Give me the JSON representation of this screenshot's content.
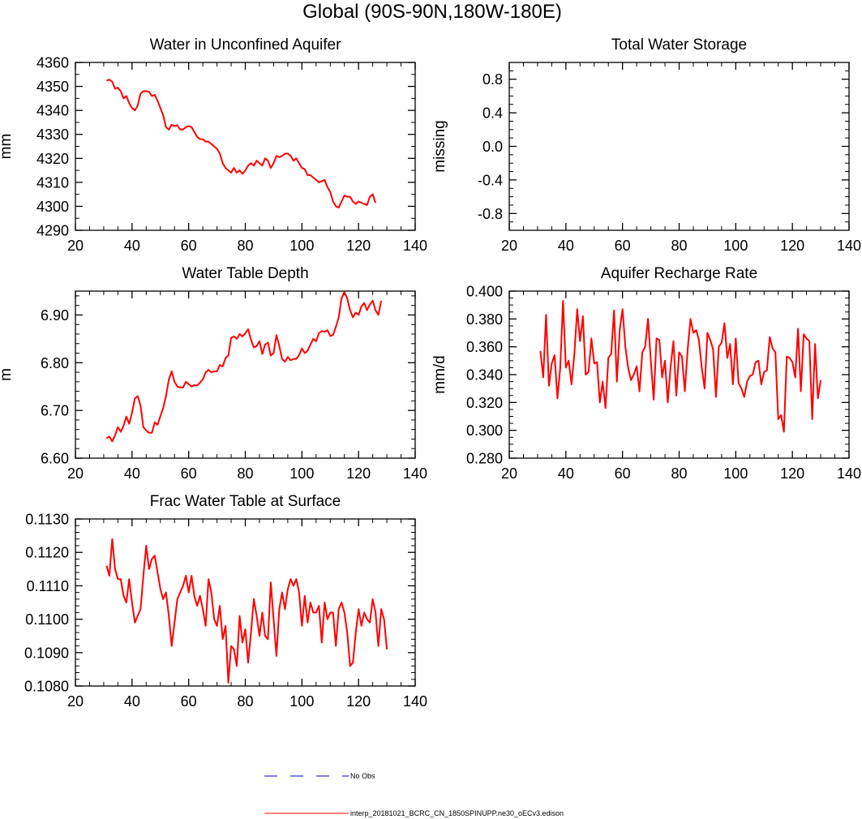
{
  "figure_title": "Global (90S-90N,180W-180E)",
  "colors": {
    "model": "#ff0000",
    "obs": "#0000cc",
    "axis": "#000000"
  },
  "legend": {
    "obs_label": "No Obs",
    "model_label": "interp_20181021_BCRC_CN_1850SPINUPP.ne30_oECv3.edison"
  },
  "chart_data": [
    {
      "type": "line",
      "title": "Water in Unconfined Aquifer",
      "xlabel": "",
      "ylabel": "mm",
      "xlim": [
        20,
        140
      ],
      "ylim": [
        4290,
        4360
      ],
      "xticks": [
        20,
        40,
        60,
        80,
        100,
        120,
        140
      ],
      "xtick_labels": [
        "20",
        "40",
        "60",
        "80",
        "100",
        "120",
        "140"
      ],
      "yticks": [
        4290,
        4300,
        4310,
        4320,
        4330,
        4340,
        4350,
        4360
      ],
      "ytick_labels": [
        "4290",
        "4300",
        "4310",
        "4320",
        "4330",
        "4340",
        "4350",
        "4360"
      ],
      "yminor": 2,
      "series": [
        {
          "name": "model",
          "x_start": 31,
          "values": [
            4352.5,
            4352.8,
            4352,
            4349,
            4349.5,
            4348,
            4345,
            4346,
            4343,
            4341,
            4340,
            4342,
            4347,
            4348,
            4348,
            4347.8,
            4346,
            4346.5,
            4344,
            4341,
            4338,
            4333,
            4332,
            4334,
            4333.5,
            4333.8,
            4332,
            4332,
            4333,
            4333.5,
            4333,
            4331,
            4329,
            4328,
            4328,
            4327,
            4327,
            4326,
            4325,
            4324,
            4322,
            4318,
            4316,
            4315,
            4314,
            4316,
            4314,
            4315,
            4313.5,
            4315,
            4317,
            4318,
            4317,
            4319,
            4318,
            4317,
            4320,
            4319,
            4316,
            4318,
            4321,
            4320.5,
            4321,
            4322,
            4322,
            4321,
            4319,
            4320,
            4318,
            4316,
            4315.5,
            4313,
            4313,
            4312,
            4311,
            4310,
            4310.5,
            4311,
            4308,
            4306,
            4302,
            4300,
            4299.5,
            4302,
            4304.5,
            4304,
            4304,
            4302,
            4301,
            4302,
            4301.5,
            4301,
            4300.5,
            4304,
            4305,
            4301.5
          ]
        }
      ]
    },
    {
      "type": "line",
      "title": "Total Water Storage",
      "xlabel": "",
      "ylabel": "missing",
      "xlim": [
        20,
        140
      ],
      "ylim": [
        -1,
        1
      ],
      "xticks": [
        20,
        40,
        60,
        80,
        100,
        120,
        140
      ],
      "xtick_labels": [
        "20",
        "40",
        "60",
        "80",
        "100",
        "120",
        "140"
      ],
      "yticks": [
        -0.8,
        -0.4,
        0.0,
        0.4,
        0.8
      ],
      "ytick_labels": [
        "-0.8",
        "-0.4",
        "0.0",
        "0.4",
        "0.8"
      ],
      "yminor": 4,
      "series": []
    },
    {
      "type": "line",
      "title": "Water Table Depth",
      "xlabel": "",
      "ylabel": "m",
      "xlim": [
        20,
        140
      ],
      "ylim": [
        6.6,
        6.95
      ],
      "xticks": [
        20,
        40,
        60,
        80,
        100,
        120,
        140
      ],
      "xtick_labels": [
        "20",
        "40",
        "60",
        "80",
        "100",
        "120",
        "140"
      ],
      "yticks": [
        6.6,
        6.7,
        6.8,
        6.9
      ],
      "ytick_labels": [
        "6.60",
        "6.70",
        "6.80",
        "6.90"
      ],
      "yminor": 5,
      "series": [
        {
          "name": "model",
          "x_start": 31,
          "values": [
            6.642,
            6.645,
            6.635,
            6.648,
            6.665,
            6.655,
            6.668,
            6.687,
            6.672,
            6.695,
            6.725,
            6.73,
            6.71,
            6.665,
            6.658,
            6.653,
            6.653,
            6.675,
            6.67,
            6.688,
            6.705,
            6.73,
            6.765,
            6.782,
            6.76,
            6.75,
            6.748,
            6.748,
            6.76,
            6.755,
            6.75,
            6.753,
            6.752,
            6.758,
            6.765,
            6.78,
            6.785,
            6.78,
            6.782,
            6.782,
            6.795,
            6.792,
            6.81,
            6.815,
            6.852,
            6.855,
            6.85,
            6.86,
            6.855,
            6.862,
            6.87,
            6.848,
            6.832,
            6.835,
            6.845,
            6.818,
            6.838,
            6.842,
            6.815,
            6.82,
            6.858,
            6.835,
            6.808,
            6.802,
            6.812,
            6.805,
            6.808,
            6.808,
            6.816,
            6.83,
            6.82,
            6.825,
            6.838,
            6.85,
            6.845,
            6.862,
            6.866,
            6.865,
            6.868,
            6.856,
            6.858,
            6.875,
            6.895,
            6.935,
            6.948,
            6.935,
            6.91,
            6.895,
            6.905,
            6.9,
            6.918,
            6.925,
            6.91,
            6.922,
            6.93,
            6.91,
            6.9,
            6.93
          ]
        }
      ]
    },
    {
      "type": "line",
      "title": "Aquifer Recharge Rate",
      "xlabel": "",
      "ylabel": "mm/d",
      "xlim": [
        20,
        140
      ],
      "ylim": [
        0.28,
        0.4
      ],
      "xticks": [
        20,
        40,
        60,
        80,
        100,
        120,
        140
      ],
      "xtick_labels": [
        "20",
        "40",
        "60",
        "80",
        "100",
        "120",
        "140"
      ],
      "yticks": [
        0.28,
        0.3,
        0.32,
        0.34,
        0.36,
        0.38,
        0.4
      ],
      "ytick_labels": [
        "0.280",
        "0.300",
        "0.320",
        "0.340",
        "0.360",
        "0.380",
        "0.400"
      ],
      "yminor": 4,
      "series": [
        {
          "name": "model",
          "x_start": 31,
          "values": [
            0.357,
            0.338,
            0.383,
            0.332,
            0.348,
            0.354,
            0.323,
            0.345,
            0.393,
            0.345,
            0.35,
            0.333,
            0.355,
            0.387,
            0.364,
            0.382,
            0.34,
            0.342,
            0.366,
            0.348,
            0.349,
            0.32,
            0.335,
            0.316,
            0.352,
            0.355,
            0.386,
            0.335,
            0.372,
            0.387,
            0.36,
            0.345,
            0.336,
            0.34,
            0.346,
            0.328,
            0.356,
            0.36,
            0.38,
            0.35,
            0.322,
            0.366,
            0.365,
            0.338,
            0.35,
            0.32,
            0.346,
            0.364,
            0.325,
            0.356,
            0.353,
            0.328,
            0.358,
            0.38,
            0.37,
            0.372,
            0.365,
            0.345,
            0.33,
            0.37,
            0.365,
            0.358,
            0.324,
            0.36,
            0.363,
            0.377,
            0.352,
            0.362,
            0.333,
            0.366,
            0.334,
            0.33,
            0.324,
            0.335,
            0.339,
            0.34,
            0.349,
            0.35,
            0.333,
            0.342,
            0.343,
            0.367,
            0.359,
            0.356,
            0.308,
            0.311,
            0.299,
            0.353,
            0.352,
            0.349,
            0.338,
            0.373,
            0.328,
            0.369,
            0.366,
            0.364,
            0.308,
            0.362,
            0.323,
            0.336
          ]
        }
      ]
    },
    {
      "type": "line",
      "title": "Frac Water Table at Surface",
      "xlabel": "",
      "ylabel": "",
      "xlim": [
        20,
        140
      ],
      "ylim": [
        0.108,
        0.113
      ],
      "xticks": [
        20,
        40,
        60,
        80,
        100,
        120,
        140
      ],
      "xtick_labels": [
        "20",
        "40",
        "60",
        "80",
        "100",
        "120",
        "140"
      ],
      "yticks": [
        0.108,
        0.109,
        0.11,
        0.111,
        0.112,
        0.113
      ],
      "ytick_labels": [
        "0.1080",
        "0.1090",
        "0.1100",
        "0.1110",
        "0.1120",
        "0.1130"
      ],
      "yminor": 5,
      "series": [
        {
          "name": "model",
          "x_start": 31,
          "values": [
            0.1116,
            0.1113,
            0.1124,
            0.1115,
            0.1112,
            0.1112,
            0.1107,
            0.1105,
            0.1112,
            0.1105,
            0.1099,
            0.1101,
            0.1103,
            0.1113,
            0.1122,
            0.1115,
            0.1118,
            0.1119,
            0.1114,
            0.1109,
            0.1106,
            0.1108,
            0.1101,
            0.1092,
            0.1099,
            0.1106,
            0.1108,
            0.111,
            0.1113,
            0.1108,
            0.1113,
            0.1107,
            0.1104,
            0.1107,
            0.1103,
            0.1098,
            0.1112,
            0.1108,
            0.11,
            0.1098,
            0.1104,
            0.1094,
            0.1098,
            0.1081,
            0.1092,
            0.1091,
            0.1086,
            0.1101,
            0.1093,
            0.1097,
            0.1087,
            0.1096,
            0.1106,
            0.1101,
            0.1095,
            0.1102,
            0.1095,
            0.1094,
            0.1111,
            0.11,
            0.1089,
            0.1103,
            0.1108,
            0.1103,
            0.1109,
            0.1112,
            0.111,
            0.1112,
            0.1108,
            0.1098,
            0.1107,
            0.1099,
            0.1105,
            0.1102,
            0.1102,
            0.1104,
            0.1093,
            0.1105,
            0.11,
            0.1102,
            0.1102,
            0.1092,
            0.1103,
            0.1105,
            0.1102,
            0.1096,
            0.1086,
            0.1087,
            0.1096,
            0.1103,
            0.1098,
            0.1102,
            0.11,
            0.1099,
            0.1106,
            0.1102,
            0.1092,
            0.1103,
            0.11,
            0.1091
          ]
        }
      ]
    }
  ]
}
